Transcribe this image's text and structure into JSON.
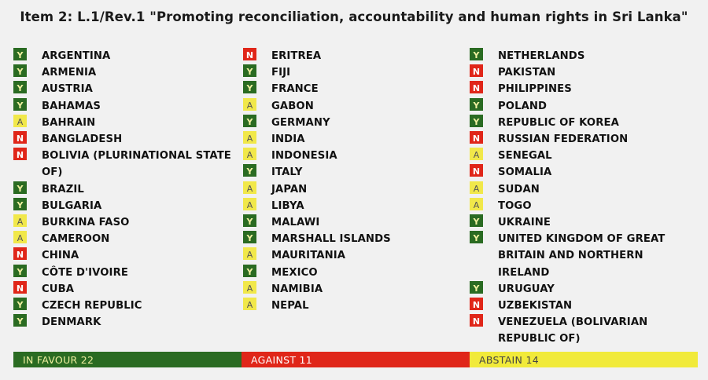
{
  "title": "Item 2: L.1/Rev.1 \"Promoting reconciliation, accountability and human rights in Sri Lanka\"",
  "colors": {
    "yes": "#2a6b22",
    "no": "#e02619",
    "abstain": "#f1e84a"
  },
  "columns": [
    [
      {
        "vote": "Y",
        "name": "ARGENTINA"
      },
      {
        "vote": "Y",
        "name": "ARMENIA"
      },
      {
        "vote": "Y",
        "name": "AUSTRIA"
      },
      {
        "vote": "Y",
        "name": "BAHAMAS"
      },
      {
        "vote": "A",
        "name": "BAHRAIN"
      },
      {
        "vote": "N",
        "name": "BANGLADESH"
      },
      {
        "vote": "N",
        "name": "BOLIVIA (PLURINATIONAL STATE\nOF)"
      },
      {
        "vote": "Y",
        "name": "BRAZIL"
      },
      {
        "vote": "Y",
        "name": "BULGARIA"
      },
      {
        "vote": "A",
        "name": "BURKINA FASO"
      },
      {
        "vote": "A",
        "name": "CAMEROON"
      },
      {
        "vote": "N",
        "name": "CHINA"
      },
      {
        "vote": "Y",
        "name": "CÔTE D'IVOIRE"
      },
      {
        "vote": "N",
        "name": "CUBA"
      },
      {
        "vote": "Y",
        "name": "CZECH REPUBLIC"
      },
      {
        "vote": "Y",
        "name": "DENMARK"
      }
    ],
    [
      {
        "vote": "N",
        "name": "ERITREA"
      },
      {
        "vote": "Y",
        "name": "FIJI"
      },
      {
        "vote": "Y",
        "name": "FRANCE"
      },
      {
        "vote": "A",
        "name": "GABON"
      },
      {
        "vote": "Y",
        "name": "GERMANY"
      },
      {
        "vote": "A",
        "name": "INDIA"
      },
      {
        "vote": "A",
        "name": "INDONESIA"
      },
      {
        "vote": "Y",
        "name": "ITALY"
      },
      {
        "vote": "A",
        "name": "JAPAN"
      },
      {
        "vote": "A",
        "name": "LIBYA"
      },
      {
        "vote": "Y",
        "name": "MALAWI"
      },
      {
        "vote": "Y",
        "name": "MARSHALL ISLANDS"
      },
      {
        "vote": "A",
        "name": "MAURITANIA"
      },
      {
        "vote": "Y",
        "name": "MEXICO"
      },
      {
        "vote": "A",
        "name": "NAMIBIA"
      },
      {
        "vote": "A",
        "name": "NEPAL"
      }
    ],
    [
      {
        "vote": "Y",
        "name": "NETHERLANDS"
      },
      {
        "vote": "N",
        "name": "PAKISTAN"
      },
      {
        "vote": "N",
        "name": "PHILIPPINES"
      },
      {
        "vote": "Y",
        "name": "POLAND"
      },
      {
        "vote": "Y",
        "name": "REPUBLIC OF KOREA"
      },
      {
        "vote": "N",
        "name": "RUSSIAN FEDERATION"
      },
      {
        "vote": "A",
        "name": "SENEGAL"
      },
      {
        "vote": "N",
        "name": "SOMALIA"
      },
      {
        "vote": "A",
        "name": "SUDAN"
      },
      {
        "vote": "A",
        "name": "TOGO"
      },
      {
        "vote": "Y",
        "name": "UKRAINE"
      },
      {
        "vote": "Y",
        "name": "UNITED KINGDOM OF GREAT\nBRITAIN AND NORTHERN IRELAND"
      },
      {
        "vote": "Y",
        "name": "URUGUAY"
      },
      {
        "vote": "N",
        "name": "UZBEKISTAN"
      },
      {
        "vote": "N",
        "name": "VENEZUELA (BOLIVARIAN\nREPUBLIC OF)"
      }
    ]
  ],
  "tally": {
    "in_favour": "IN FAVOUR 22",
    "against": "AGAINST 11",
    "abstain": "ABSTAIN 14"
  }
}
